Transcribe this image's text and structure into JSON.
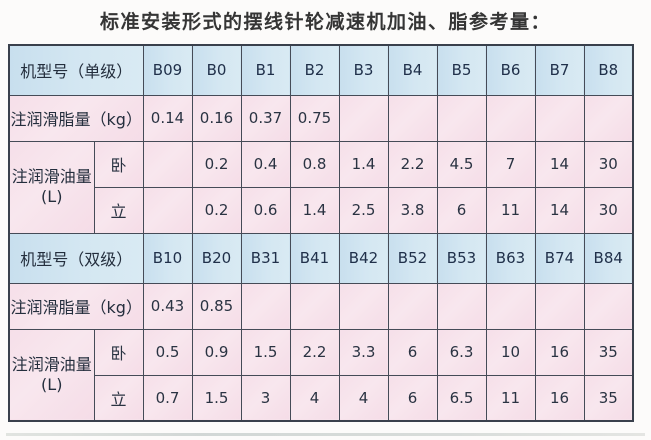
{
  "title": "标准安装形式的摆线针轮减速机加油、脂参考量：",
  "colors": {
    "header_bg": "#d2e6f1",
    "data_bg": "#f6dfe9",
    "border": "#454b57",
    "text": "#2a3342",
    "title_text": "#353535"
  },
  "table": {
    "sections": [
      {
        "model_label": "机型号（单级）",
        "models": [
          "B09",
          "B0",
          "B1",
          "B2",
          "B3",
          "B4",
          "B5",
          "B6",
          "B7",
          "B8"
        ],
        "grease_label": "注润滑脂量（kg）",
        "grease": [
          "0.14",
          "0.16",
          "0.37",
          "0.75",
          "",
          "",
          "",
          "",
          "",
          ""
        ],
        "oil_label": "注润滑油量",
        "oil_unit": "(L)",
        "horizontal_label": "卧",
        "horizontal": [
          "",
          "0.2",
          "0.4",
          "0.8",
          "1.4",
          "2.2",
          "4.5",
          "7",
          "14",
          "30"
        ],
        "vertical_label": "立",
        "vertical": [
          "",
          "0.2",
          "0.6",
          "1.4",
          "2.5",
          "3.8",
          "6",
          "11",
          "14",
          "30"
        ]
      },
      {
        "model_label": "机型号（双级）",
        "models": [
          "B10",
          "B20",
          "B31",
          "B41",
          "B42",
          "B52",
          "B53",
          "B63",
          "B74",
          "B84"
        ],
        "grease_label": "注润滑脂量（kg）",
        "grease": [
          "0.43",
          "0.85",
          "",
          "",
          "",
          "",
          "",
          "",
          "",
          ""
        ],
        "oil_label": "注润滑油量",
        "oil_unit": "(L)",
        "horizontal_label": "卧",
        "horizontal": [
          "0.5",
          "0.9",
          "1.5",
          "2.2",
          "3.3",
          "6",
          "6.3",
          "10",
          "16",
          "35"
        ],
        "vertical_label": "立",
        "vertical": [
          "0.7",
          "1.5",
          "3",
          "4",
          "4",
          "6",
          "6.5",
          "11",
          "16",
          "35"
        ]
      }
    ]
  }
}
